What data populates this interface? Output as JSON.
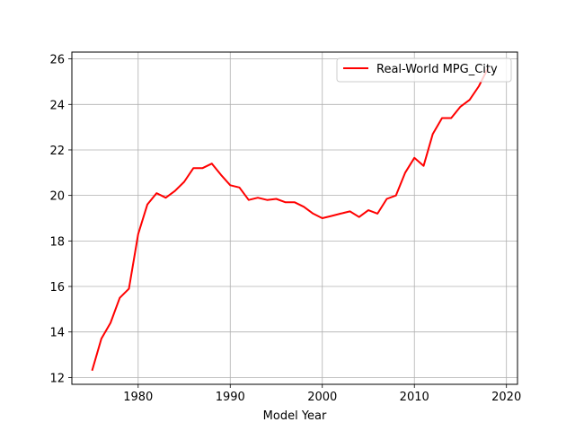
{
  "chart_data": {
    "type": "line",
    "xlabel": "Model Year",
    "ylabel": "",
    "xlim": [
      1972.8,
      2021.2
    ],
    "ylim": [
      11.7,
      26.3
    ],
    "xticks": [
      1980,
      1990,
      2000,
      2010,
      2020
    ],
    "yticks": [
      12,
      14,
      16,
      18,
      20,
      22,
      24,
      26
    ],
    "grid": true,
    "legend_position": "top-right",
    "series": [
      {
        "name": "Real-World MPG_City",
        "color": "#ff0000",
        "x": [
          1975,
          1976,
          1977,
          1978,
          1979,
          1980,
          1981,
          1982,
          1983,
          1984,
          1985,
          1986,
          1987,
          1988,
          1989,
          1990,
          1991,
          1992,
          1993,
          1994,
          1995,
          1996,
          1997,
          1998,
          1999,
          2000,
          2001,
          2002,
          2003,
          2004,
          2005,
          2006,
          2007,
          2008,
          2009,
          2010,
          2011,
          2012,
          2013,
          2014,
          2015,
          2016,
          2017,
          2018
        ],
        "y": [
          12.3,
          13.7,
          14.4,
          15.5,
          15.9,
          18.3,
          19.6,
          20.1,
          19.9,
          20.2,
          20.6,
          21.2,
          21.2,
          21.4,
          20.9,
          20.45,
          20.35,
          19.8,
          19.9,
          19.8,
          19.85,
          19.7,
          19.7,
          19.5,
          19.2,
          19.0,
          19.1,
          19.2,
          19.3,
          19.05,
          19.35,
          19.2,
          19.85,
          20.0,
          21.0,
          21.65,
          21.3,
          22.7,
          23.4,
          23.4,
          23.9,
          24.2,
          24.8,
          25.6
        ]
      }
    ]
  }
}
